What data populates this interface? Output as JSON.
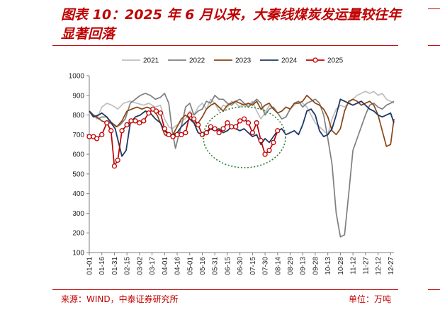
{
  "header": {
    "title": "图表 10：2025 年 6 月以来，大秦线煤炭发运量较往年显著回落"
  },
  "footer": {
    "source": "来源：WIND，中泰证券研究所",
    "unit": "单位：万吨"
  },
  "colors": {
    "accent": "#c00000",
    "s2021": "#bfbfbf",
    "s2022": "#7f7f7f",
    "s2023": "#8b4513",
    "s2024": "#1f3864",
    "s2025": "#c00000",
    "annotation": "#2e7d32"
  },
  "chart_data": {
    "type": "line",
    "title": "",
    "xlabel": "",
    "ylabel": "",
    "ylim": [
      100,
      1000
    ],
    "yticks": [
      100,
      200,
      300,
      400,
      500,
      600,
      700,
      800,
      900,
      1000
    ],
    "xlim": [
      1,
      365
    ],
    "xticks": [
      {
        "label": "01-01",
        "x": 1
      },
      {
        "label": "01-16",
        "x": 16
      },
      {
        "label": "01-31",
        "x": 31
      },
      {
        "label": "02-15",
        "x": 46
      },
      {
        "label": "03-02",
        "x": 61
      },
      {
        "label": "03-17",
        "x": 76
      },
      {
        "label": "04-01",
        "x": 91
      },
      {
        "label": "04-16",
        "x": 106
      },
      {
        "label": "05-01",
        "x": 121
      },
      {
        "label": "05-16",
        "x": 136
      },
      {
        "label": "05-31",
        "x": 151
      },
      {
        "label": "06-15",
        "x": 166
      },
      {
        "label": "06-30",
        "x": 181
      },
      {
        "label": "07-15",
        "x": 196
      },
      {
        "label": "07-30",
        "x": 211
      },
      {
        "label": "08-14",
        "x": 226
      },
      {
        "label": "08-29",
        "x": 241
      },
      {
        "label": "09-13",
        "x": 256
      },
      {
        "label": "09-28",
        "x": 271
      },
      {
        "label": "10-13",
        "x": 286
      },
      {
        "label": "10-28",
        "x": 301
      },
      {
        "label": "11-12",
        "x": 316
      },
      {
        "label": "11-27",
        "x": 331
      },
      {
        "label": "12-12",
        "x": 346
      },
      {
        "label": "12-27",
        "x": 361
      }
    ],
    "legend_position": "top",
    "grid": false,
    "series": [
      {
        "name": "2021",
        "key": "s2021",
        "marker": false,
        "x": [
          1,
          6,
          10,
          16,
          22,
          28,
          35,
          42,
          50,
          58,
          66,
          72,
          80,
          86,
          91,
          96,
          100,
          106,
          112,
          118,
          121,
          126,
          131,
          136,
          141,
          146,
          151,
          156,
          161,
          166,
          171,
          176,
          181,
          186,
          191,
          196,
          201,
          206,
          211,
          216,
          221,
          226,
          231,
          236,
          241,
          246,
          251,
          256,
          261,
          266,
          271,
          276,
          281,
          286,
          291,
          296,
          301,
          306,
          311,
          316,
          321,
          326,
          331,
          336,
          341,
          346,
          351,
          356,
          361,
          365
        ],
        "y": [
          820,
          800,
          780,
          840,
          860,
          850,
          830,
          860,
          870,
          860,
          850,
          860,
          840,
          850,
          780,
          740,
          730,
          750,
          770,
          790,
          820,
          800,
          840,
          860,
          830,
          880,
          860,
          820,
          850,
          840,
          870,
          860,
          840,
          860,
          850,
          870,
          820,
          780,
          810,
          850,
          830,
          810,
          820,
          840,
          830,
          850,
          870,
          860,
          840,
          800,
          760,
          740,
          720,
          700,
          780,
          830,
          850,
          840,
          860,
          880,
          900,
          910,
          920,
          910,
          920,
          900,
          910,
          880,
          870,
          860
        ]
      },
      {
        "name": "2022",
        "key": "s2022",
        "marker": false,
        "x": [
          1,
          6,
          12,
          16,
          22,
          28,
          33,
          38,
          44,
          50,
          56,
          62,
          68,
          74,
          80,
          86,
          91,
          96,
          100,
          104,
          108,
          112,
          116,
          121,
          126,
          131,
          136,
          141,
          146,
          151,
          156,
          161,
          166,
          171,
          176,
          181,
          186,
          191,
          196,
          201,
          206,
          211,
          216,
          221,
          226,
          231,
          236,
          241,
          246,
          251,
          256,
          261,
          266,
          271,
          276,
          281,
          286,
          291,
          296,
          301,
          306,
          311,
          316,
          321,
          326,
          331,
          336,
          341,
          346,
          351,
          356,
          361,
          365
        ],
        "y": [
          820,
          800,
          780,
          790,
          790,
          760,
          740,
          750,
          780,
          860,
          880,
          900,
          910,
          900,
          880,
          890,
          910,
          860,
          720,
          630,
          700,
          760,
          840,
          860,
          800,
          820,
          830,
          870,
          860,
          900,
          880,
          880,
          860,
          850,
          870,
          880,
          860,
          840,
          860,
          880,
          860,
          800,
          830,
          840,
          810,
          780,
          790,
          830,
          860,
          870,
          840,
          860,
          870,
          880,
          860,
          800,
          680,
          550,
          300,
          180,
          190,
          400,
          620,
          680,
          740,
          800,
          850,
          860,
          840,
          830,
          850,
          860,
          870
        ]
      },
      {
        "name": "2023",
        "key": "s2023",
        "marker": false,
        "x": [
          1,
          6,
          10,
          16,
          22,
          28,
          34,
          40,
          46,
          52,
          58,
          64,
          70,
          76,
          82,
          86,
          91,
          96,
          101,
          106,
          111,
          116,
          121,
          126,
          131,
          136,
          141,
          146,
          151,
          156,
          161,
          166,
          171,
          176,
          181,
          186,
          191,
          196,
          201,
          206,
          211,
          216,
          221,
          226,
          231,
          236,
          241,
          246,
          251,
          256,
          261,
          266,
          271,
          276,
          281,
          286,
          291,
          296,
          301,
          306,
          311,
          316,
          321,
          326,
          331,
          336,
          341,
          346,
          351,
          356,
          361,
          365
        ],
        "y": [
          820,
          800,
          790,
          770,
          760,
          760,
          740,
          770,
          820,
          830,
          840,
          830,
          840,
          830,
          800,
          760,
          700,
          690,
          700,
          740,
          780,
          800,
          780,
          760,
          760,
          790,
          830,
          850,
          860,
          840,
          820,
          850,
          860,
          870,
          860,
          850,
          860,
          850,
          870,
          830,
          850,
          860,
          830,
          810,
          820,
          840,
          830,
          860,
          860,
          870,
          900,
          880,
          860,
          850,
          830,
          790,
          720,
          700,
          730,
          820,
          870,
          880,
          870,
          850,
          860,
          870,
          850,
          800,
          720,
          640,
          650,
          780
        ]
      },
      {
        "name": "2024",
        "key": "s2024",
        "marker": false,
        "x": [
          1,
          6,
          12,
          16,
          22,
          27,
          32,
          36,
          40,
          45,
          50,
          56,
          62,
          68,
          74,
          80,
          86,
          91,
          96,
          101,
          106,
          111,
          116,
          121,
          126,
          131,
          136,
          141,
          146,
          151,
          156,
          161,
          166,
          171,
          176,
          181,
          186,
          191,
          196,
          201,
          206,
          211,
          216,
          221,
          226,
          231,
          236,
          241,
          246,
          251,
          256,
          261,
          266,
          271,
          276,
          281,
          286,
          291,
          296,
          301,
          306,
          311,
          316,
          321,
          326,
          331,
          336,
          341,
          346,
          351,
          356,
          361,
          365
        ],
        "y": [
          820,
          790,
          800,
          810,
          790,
          760,
          730,
          660,
          590,
          620,
          760,
          790,
          800,
          820,
          810,
          780,
          760,
          720,
          700,
          700,
          710,
          740,
          760,
          780,
          760,
          710,
          700,
          710,
          730,
          720,
          730,
          710,
          720,
          740,
          730,
          720,
          730,
          710,
          690,
          700,
          650,
          680,
          660,
          690,
          720,
          730,
          700,
          710,
          720,
          700,
          750,
          820,
          830,
          800,
          720,
          690,
          700,
          730,
          800,
          880,
          870,
          860,
          850,
          860,
          870,
          850,
          830,
          820,
          800,
          790,
          800,
          810,
          760
        ]
      },
      {
        "name": "2025",
        "key": "s2025",
        "marker": true,
        "x": [
          1,
          6,
          10,
          16,
          22,
          27,
          31,
          35,
          40,
          46,
          51,
          56,
          61,
          66,
          72,
          77,
          81,
          86,
          91,
          96,
          101,
          106,
          111,
          116,
          121,
          126,
          131,
          136,
          141,
          146,
          151,
          156,
          161,
          166,
          171,
          176,
          181,
          186,
          191,
          196,
          201,
          206,
          211,
          216,
          221,
          226
        ],
        "y": [
          690,
          690,
          680,
          700,
          760,
          720,
          540,
          570,
          720,
          750,
          770,
          770,
          760,
          770,
          810,
          830,
          820,
          810,
          730,
          700,
          690,
          700,
          700,
          710,
          800,
          780,
          750,
          700,
          710,
          740,
          730,
          710,
          730,
          760,
          740,
          740,
          770,
          780,
          760,
          710,
          760,
          670,
          600,
          620,
          660,
          720
        ]
      }
    ]
  }
}
